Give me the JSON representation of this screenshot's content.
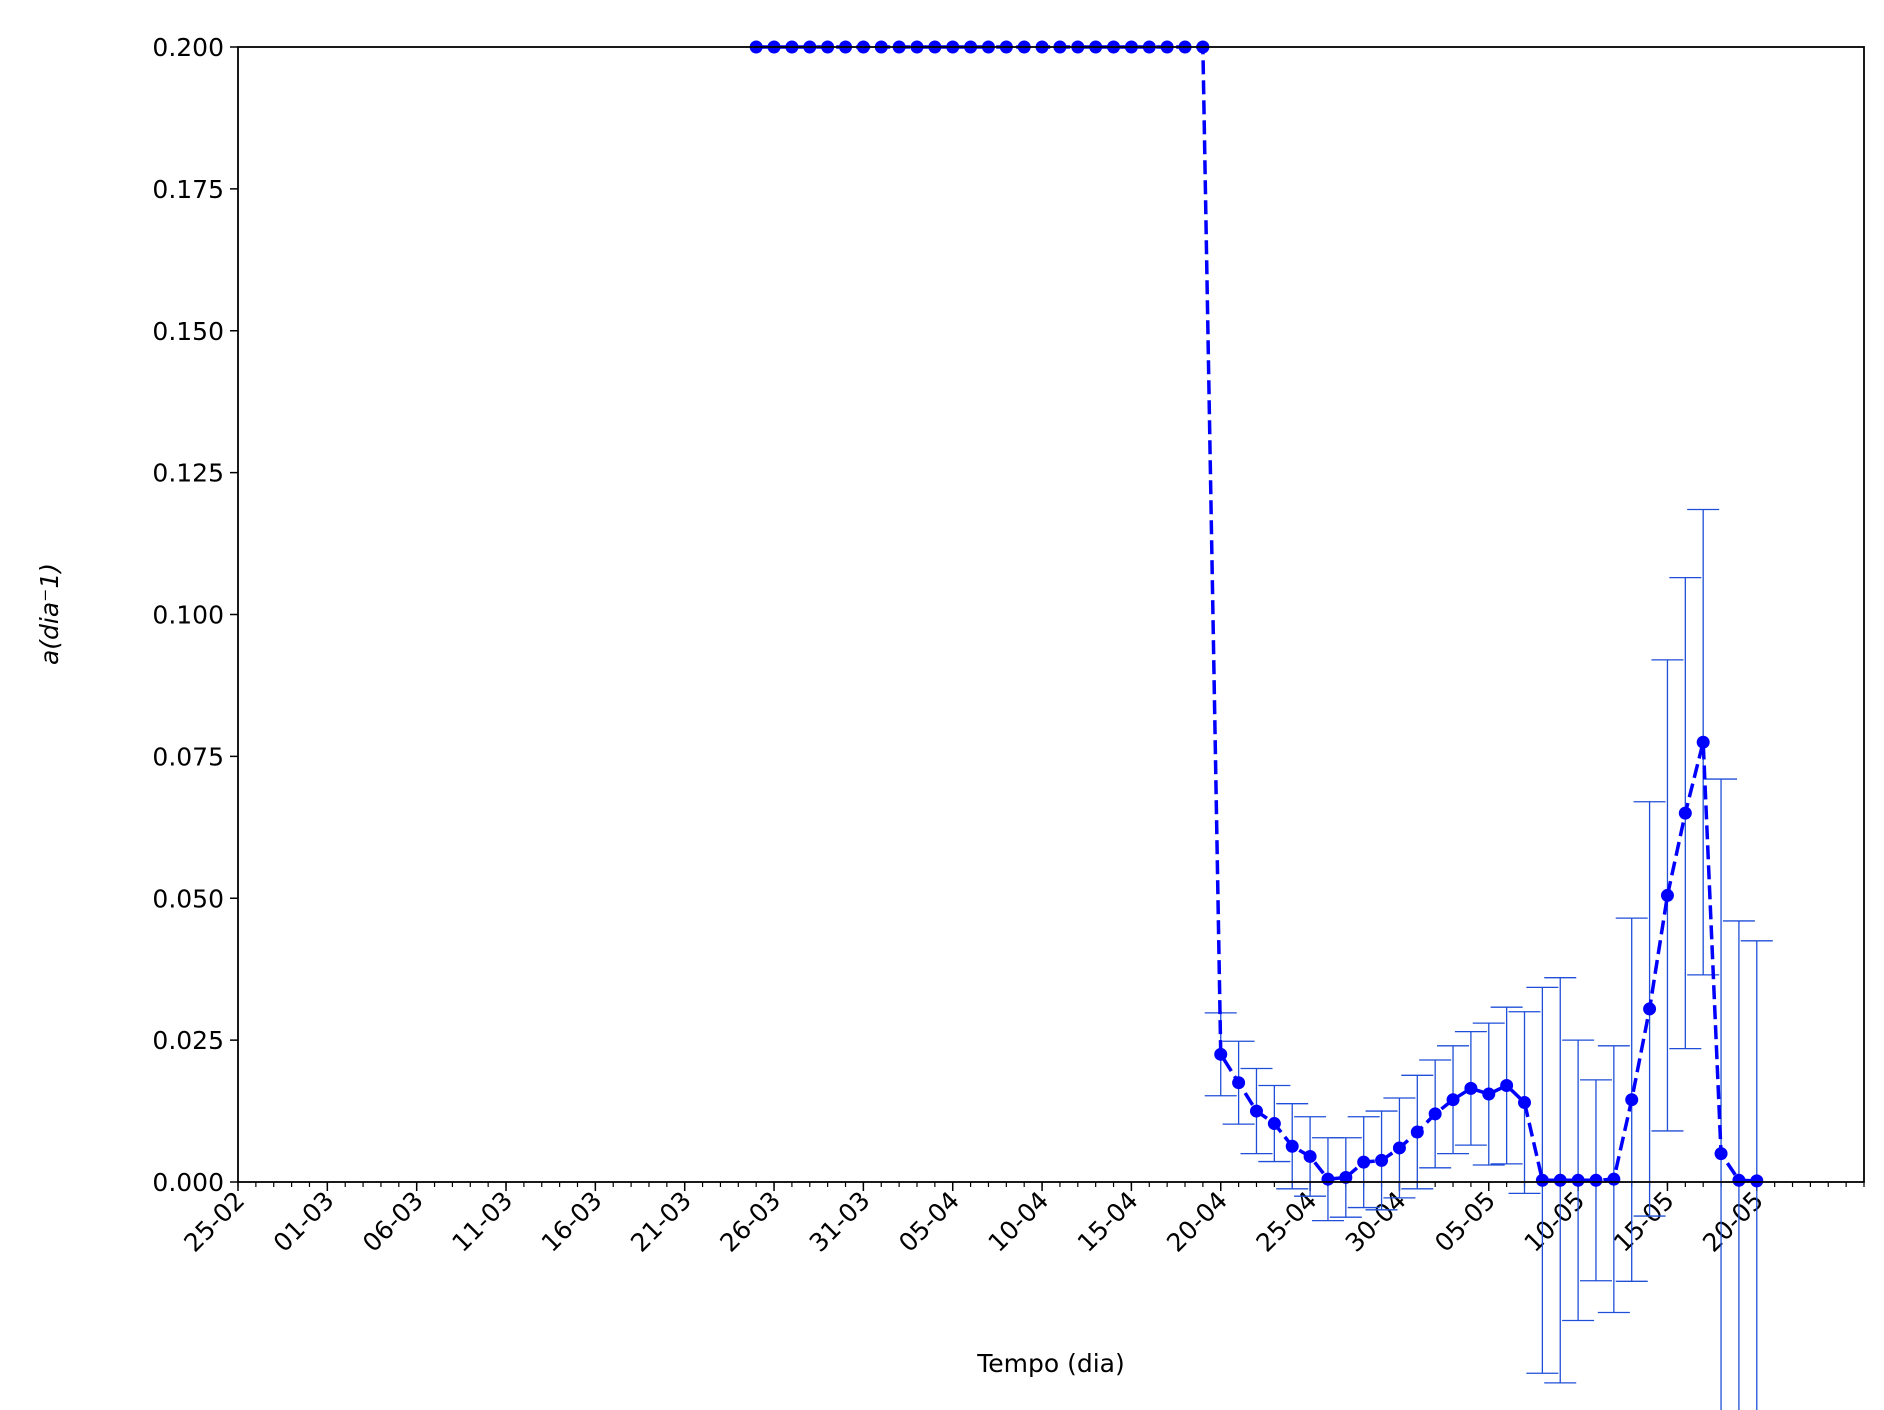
{
  "chart_data": {
    "type": "line",
    "x_label": "Tempo (dia)",
    "y_label": "a(dia⁻1)",
    "x": [
      "25-03",
      "26-03",
      "27-03",
      "28-03",
      "29-03",
      "30-03",
      "31-03",
      "01-04",
      "02-04",
      "03-04",
      "04-04",
      "05-04",
      "06-04",
      "07-04",
      "08-04",
      "09-04",
      "10-04",
      "11-04",
      "12-04",
      "13-04",
      "14-04",
      "15-04",
      "16-04",
      "17-04",
      "18-04",
      "19-04",
      "20-04",
      "21-04",
      "22-04",
      "23-04",
      "24-04",
      "25-04",
      "26-04",
      "27-04",
      "28-04",
      "29-04",
      "30-04",
      "01-05",
      "02-05",
      "03-05",
      "04-05",
      "05-05",
      "06-05",
      "07-05",
      "08-05",
      "09-05",
      "10-05",
      "11-05",
      "12-05",
      "13-05",
      "14-05",
      "15-05",
      "16-05",
      "17-05",
      "18-05",
      "19-05",
      "20-05"
    ],
    "values": [
      0.2,
      0.2,
      0.2,
      0.2,
      0.2,
      0.2,
      0.2,
      0.2,
      0.2,
      0.2,
      0.2,
      0.2,
      0.2,
      0.2,
      0.2,
      0.2,
      0.2,
      0.2,
      0.2,
      0.2,
      0.2,
      0.2,
      0.2,
      0.2,
      0.2,
      0.2,
      0.0225,
      0.0175,
      0.0125,
      0.0103,
      0.0063,
      0.0045,
      0.0005,
      0.0008,
      0.0035,
      0.0038,
      0.006,
      0.0088,
      0.012,
      0.0145,
      0.0165,
      0.0155,
      0.017,
      0.014,
      0.0003,
      0.0003,
      0.0003,
      0.0003,
      0.0005,
      0.0145,
      0.0305,
      0.0505,
      0.065,
      0.0775,
      0.005,
      0.0003,
      0.0002
    ],
    "errors": [
      null,
      null,
      null,
      null,
      null,
      null,
      null,
      null,
      null,
      null,
      null,
      null,
      null,
      null,
      null,
      null,
      null,
      null,
      null,
      null,
      null,
      null,
      null,
      null,
      null,
      null,
      0.0073,
      0.0073,
      0.0075,
      0.0067,
      0.0075,
      0.007,
      0.0073,
      0.007,
      0.008,
      0.0087,
      0.0088,
      0.01,
      0.0095,
      0.0095,
      0.01,
      0.0125,
      0.0138,
      0.016,
      0.034,
      0.0357,
      0.0247,
      0.0177,
      0.0235,
      0.032,
      0.0365,
      0.0415,
      0.0415,
      0.041,
      0.066,
      0.0457,
      0.0423
    ],
    "color": "#0000ff",
    "error_color": "#1f4fd8",
    "line_style": "dashed",
    "xlim": [
      "25-02",
      "26-05"
    ],
    "xticks": [
      "25-02",
      "01-03",
      "06-03",
      "11-03",
      "16-03",
      "21-03",
      "26-03",
      "31-03",
      "05-04",
      "10-04",
      "15-04",
      "20-04",
      "25-04",
      "30-04",
      "05-05",
      "10-05",
      "15-05",
      "20-05"
    ],
    "ylim": [
      0,
      0.2
    ],
    "yticks": [
      {
        "value": 0,
        "label": "0.000"
      },
      {
        "value": 0.025,
        "label": "0.025"
      },
      {
        "value": 0.05,
        "label": "0.050"
      },
      {
        "value": 0.075,
        "label": "0.075"
      },
      {
        "value": 0.1,
        "label": "0.100"
      },
      {
        "value": 0.125,
        "label": "0.125"
      },
      {
        "value": 0.15,
        "label": "0.150"
      },
      {
        "value": 0.175,
        "label": "0.175"
      },
      {
        "value": 0.2,
        "label": "0.200"
      }
    ]
  }
}
